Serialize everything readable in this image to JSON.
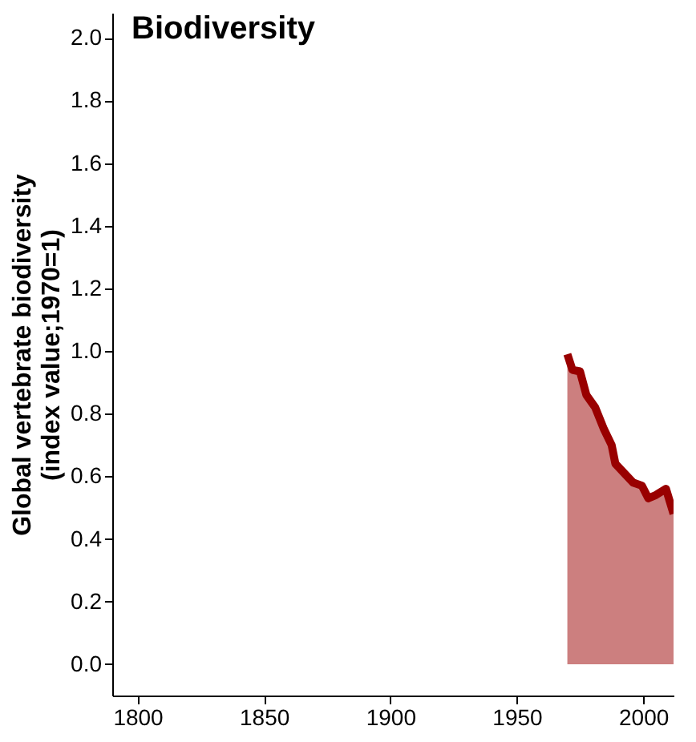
{
  "chart_data": {
    "type": "area",
    "title": "Biodiversity",
    "ylabel": "Global vertebrate biodiversity\n(index value;1970=1)",
    "x": [
      1970,
      1972,
      1975,
      1977.5,
      1981,
      1984.5,
      1987.5,
      1989,
      1992.5,
      1996,
      1999.5,
      2002,
      2005,
      2009,
      2012
    ],
    "series": [
      {
        "color": "#990000",
        "values": [
          0.99,
          0.94,
          0.935,
          0.86,
          0.82,
          0.75,
          0.7,
          0.64,
          0.61,
          0.58,
          0.57,
          0.53,
          0.54,
          0.56,
          0.48
        ]
      }
    ],
    "xlim": [
      1790,
      2012
    ],
    "xticks": [
      1800,
      1850,
      1900,
      1950,
      2000
    ],
    "ylim": [
      -0.1,
      2.08
    ],
    "yticks": [
      {
        "value": 0,
        "label": "0.0"
      },
      {
        "value": 0.2,
        "label": "0.2"
      },
      {
        "value": 0.4,
        "label": "0.4"
      },
      {
        "value": 0.6,
        "label": "0.6"
      },
      {
        "value": 0.8,
        "label": "0.8"
      },
      {
        "value": 1,
        "label": "1.0"
      },
      {
        "value": 1.2,
        "label": "1.2"
      },
      {
        "value": 1.4,
        "label": "1.4"
      },
      {
        "value": 1.6,
        "label": "1.6"
      },
      {
        "value": 1.8,
        "label": "1.8"
      },
      {
        "value": 2,
        "label": "2.0"
      }
    ],
    "grid": false
  }
}
